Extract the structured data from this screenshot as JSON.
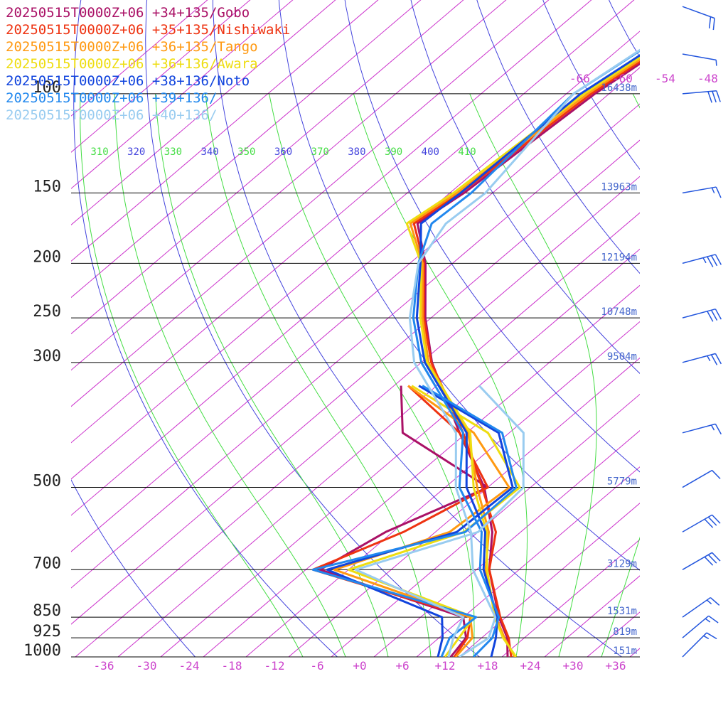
{
  "legend": [
    {
      "text": "20250515T0000Z+06 +34+135/Gobo",
      "color": "#aa1166"
    },
    {
      "text": "20250515T0000Z+06 +35+135/Nishiwaki",
      "color": "#ee3311"
    },
    {
      "text": "20250515T0000Z+06 +36+135/Tango",
      "color": "#ff9911"
    },
    {
      "text": "20250515T0000Z+06 +36+136/Awara",
      "color": "#eedd11"
    },
    {
      "text": "20250515T0000Z+06 +38+136/Noto",
      "color": "#1144dd"
    },
    {
      "text": "20250515T0000Z+06 +39+136/",
      "color": "#2288ee"
    },
    {
      "text": "20250515T0000Z+06 +40+136/",
      "color": "#99ccf0"
    }
  ],
  "colors": {
    "isotherm": "#cc33cc",
    "dry_adiabat": "#4444dd",
    "moist_adiabat": "#44dd44",
    "isobar": "#000000",
    "height_label": "#4466cc",
    "wind_barb": "#2255dd"
  },
  "chart_data": {
    "type": "line",
    "title": "",
    "xlabel": "",
    "ylabel": "",
    "pressure_levels": [
      {
        "p": 100,
        "label": "100",
        "height": "16438m"
      },
      {
        "p": 150,
        "label": "150",
        "height": "13963m"
      },
      {
        "p": 200,
        "label": "200",
        "height": "12194m"
      },
      {
        "p": 250,
        "label": "250",
        "height": "10748m"
      },
      {
        "p": 300,
        "label": "300",
        "height": "9504m"
      },
      {
        "p": 500,
        "label": "500",
        "height": "5779m"
      },
      {
        "p": 700,
        "label": "700",
        "height": "3129m"
      },
      {
        "p": 850,
        "label": "850",
        "height": "1531m"
      },
      {
        "p": 925,
        "label": "925",
        "height": "819m"
      },
      {
        "p": 1000,
        "label": "1000",
        "height": "151m"
      }
    ],
    "temperature_ticks": [
      "-36",
      "-30",
      "-24",
      "-18",
      "-12",
      "-6",
      "+0",
      "+6",
      "+12",
      "+18",
      "+24",
      "+30",
      "+36"
    ],
    "upper_isotherm_labels": [
      "-66",
      "-60",
      "-54",
      "-48"
    ],
    "theta_labels": [
      {
        "label": "310",
        "kind": "moist"
      },
      {
        "label": "320",
        "kind": "dry"
      },
      {
        "label": "330",
        "kind": "moist"
      },
      {
        "label": "340",
        "kind": "dry"
      },
      {
        "label": "350",
        "kind": "moist"
      },
      {
        "label": "360",
        "kind": "dry"
      },
      {
        "label": "370",
        "kind": "moist"
      },
      {
        "label": "380",
        "kind": "dry"
      },
      {
        "label": "390",
        "kind": "moist"
      },
      {
        "label": "400",
        "kind": "dry"
      },
      {
        "label": "410",
        "kind": "moist"
      }
    ],
    "temperature_range": [
      -40,
      40
    ],
    "pressure_range": [
      1000,
      100
    ],
    "series": [
      {
        "name": "20250515T0000Z+06 +34+135/Gobo",
        "temperature": [
          [
            1000,
            20.8
          ],
          [
            925,
            17.6
          ],
          [
            850,
            13.0
          ],
          [
            700,
            3.8
          ],
          [
            600,
            -2.0
          ],
          [
            500,
            -10.5
          ],
          [
            400,
            -23.0
          ],
          [
            300,
            -38.5
          ],
          [
            250,
            -46.8
          ],
          [
            200,
            -55.8
          ],
          [
            170,
            -63.5
          ],
          [
            150,
            -62.0
          ],
          [
            100,
            -60.0
          ],
          [
            70,
            -56.0
          ]
        ],
        "dewpoint": [
          [
            1000,
            12.8
          ],
          [
            925,
            11.8
          ],
          [
            850,
            8.0
          ],
          [
            700,
            -20.0
          ],
          [
            600,
            -17.0
          ],
          [
            500,
            -10.0
          ],
          [
            400,
            -31.0
          ],
          [
            330,
            -39.0
          ]
        ]
      },
      {
        "name": "20250515T0000Z+06 +35+135/Nishiwaki",
        "temperature": [
          [
            1000,
            21.3
          ],
          [
            925,
            17.8
          ],
          [
            850,
            13.2
          ],
          [
            700,
            3.8
          ],
          [
            600,
            -1.5
          ],
          [
            500,
            -10.8
          ],
          [
            400,
            -22.5
          ],
          [
            300,
            -38.6
          ],
          [
            250,
            -47.0
          ],
          [
            200,
            -56.0
          ],
          [
            170,
            -64.0
          ],
          [
            150,
            -62.5
          ],
          [
            100,
            -60.5
          ],
          [
            70,
            -56.3
          ]
        ],
        "dewpoint": [
          [
            1000,
            13.3
          ],
          [
            925,
            12.0
          ],
          [
            850,
            9.0
          ],
          [
            700,
            -21.0
          ],
          [
            600,
            -14.5
          ],
          [
            500,
            -10.0
          ],
          [
            400,
            -23.0
          ],
          [
            330,
            -38.0
          ]
        ]
      },
      {
        "name": "20250515T0000Z+06 +36+135/Tango",
        "temperature": [
          [
            1000,
            21.8
          ],
          [
            925,
            17.2
          ],
          [
            850,
            12.6
          ],
          [
            700,
            3.3
          ],
          [
            600,
            -2.5
          ],
          [
            500,
            -11.5
          ],
          [
            400,
            -21.8
          ],
          [
            300,
            -39.0
          ],
          [
            250,
            -47.2
          ],
          [
            200,
            -56.2
          ],
          [
            170,
            -64.5
          ],
          [
            150,
            -63.0
          ],
          [
            100,
            -61.0
          ],
          [
            70,
            -56.6
          ]
        ],
        "dewpoint": [
          [
            1000,
            13.5
          ],
          [
            925,
            12.7
          ],
          [
            850,
            9.0
          ],
          [
            700,
            -18.0
          ],
          [
            600,
            -8.0
          ],
          [
            500,
            -7.0
          ],
          [
            400,
            -21.0
          ],
          [
            330,
            -38.0
          ]
        ]
      },
      {
        "name": "20250515T0000Z+06 +36+136/Awara",
        "temperature": [
          [
            1000,
            22.0
          ],
          [
            925,
            17.0
          ],
          [
            850,
            12.4
          ],
          [
            700,
            3.5
          ],
          [
            600,
            -2.8
          ],
          [
            500,
            -12.0
          ],
          [
            400,
            -21.5
          ],
          [
            300,
            -39.2
          ],
          [
            250,
            -47.5
          ],
          [
            200,
            -56.4
          ],
          [
            170,
            -65.0
          ],
          [
            150,
            -63.5
          ],
          [
            100,
            -61.5
          ],
          [
            70,
            -57.0
          ]
        ],
        "dewpoint": [
          [
            1000,
            12.0
          ],
          [
            925,
            10.8
          ],
          [
            850,
            9.5
          ],
          [
            700,
            -16.0
          ],
          [
            600,
            -6.0
          ],
          [
            500,
            -5.5
          ],
          [
            400,
            -19.0
          ],
          [
            330,
            -37.5
          ]
        ]
      },
      {
        "name": "20250515T0000Z+06 +38+136/Noto",
        "temperature": [
          [
            1000,
            18.5
          ],
          [
            925,
            16.0
          ],
          [
            850,
            12.8
          ],
          [
            700,
            3.0
          ],
          [
            600,
            -3.0
          ],
          [
            500,
            -13.0
          ],
          [
            400,
            -22.0
          ],
          [
            300,
            -39.5
          ],
          [
            250,
            -48.0
          ],
          [
            200,
            -56.5
          ],
          [
            170,
            -63.0
          ],
          [
            150,
            -62.5
          ],
          [
            100,
            -62.0
          ],
          [
            70,
            -57.5
          ]
        ],
        "dewpoint": [
          [
            1000,
            11.0
          ],
          [
            925,
            8.5
          ],
          [
            850,
            5.0
          ],
          [
            700,
            -19.0
          ],
          [
            600,
            -7.0
          ],
          [
            500,
            -6.5
          ],
          [
            400,
            -17.5
          ],
          [
            330,
            -36.5
          ]
        ]
      },
      {
        "name": "20250515T0000Z+06 +39+136/",
        "temperature": [
          [
            1000,
            16.0
          ],
          [
            925,
            15.5
          ],
          [
            850,
            13.0
          ],
          [
            700,
            2.5
          ],
          [
            600,
            -3.5
          ],
          [
            500,
            -14.0
          ],
          [
            400,
            -22.5
          ],
          [
            300,
            -40.0
          ],
          [
            250,
            -48.5
          ],
          [
            200,
            -56.8
          ],
          [
            170,
            -61.5
          ],
          [
            150,
            -61.0
          ],
          [
            100,
            -63.0
          ],
          [
            70,
            -58.5
          ]
        ],
        "dewpoint": [
          [
            1000,
            11.5
          ],
          [
            925,
            9.5
          ],
          [
            850,
            9.8
          ],
          [
            700,
            -21.0
          ],
          [
            600,
            -5.8
          ],
          [
            500,
            -6.0
          ],
          [
            400,
            -17.0
          ],
          [
            330,
            -36.0
          ]
        ]
      },
      {
        "name": "20250515T0000Z+06 +40+136/",
        "temperature": [
          [
            1000,
            14.0
          ],
          [
            925,
            15.0
          ],
          [
            850,
            12.5
          ],
          [
            700,
            1.5
          ],
          [
            600,
            -5.0
          ],
          [
            500,
            -14.5
          ],
          [
            400,
            -23.5
          ],
          [
            300,
            -41.0
          ],
          [
            250,
            -49.0
          ],
          [
            200,
            -56.8
          ],
          [
            170,
            -59.5
          ],
          [
            150,
            -59.0
          ],
          [
            100,
            -63.0
          ],
          [
            70,
            -58.8
          ]
        ],
        "dewpoint": [
          [
            1000,
            12.5
          ],
          [
            925,
            10.0
          ],
          [
            850,
            8.0
          ],
          [
            700,
            -15.0
          ],
          [
            600,
            -4.0
          ],
          [
            500,
            -5.0
          ],
          [
            400,
            -14.0
          ],
          [
            330,
            -28.0
          ]
        ]
      }
    ],
    "wind_barbs": [
      {
        "p": 70,
        "speed_kt": 20,
        "dir_deg": 290
      },
      {
        "p": 85,
        "speed_kt": 5,
        "dir_deg": 280
      },
      {
        "p": 100,
        "speed_kt": 30,
        "dir_deg": 265
      },
      {
        "p": 150,
        "speed_kt": 15,
        "dir_deg": 260
      },
      {
        "p": 200,
        "speed_kt": 35,
        "dir_deg": 255
      },
      {
        "p": 250,
        "speed_kt": 30,
        "dir_deg": 255
      },
      {
        "p": 300,
        "speed_kt": 25,
        "dir_deg": 255
      },
      {
        "p": 400,
        "speed_kt": 15,
        "dir_deg": 255
      },
      {
        "p": 500,
        "speed_kt": 10,
        "dir_deg": 240
      },
      {
        "p": 600,
        "speed_kt": 30,
        "dir_deg": 240
      },
      {
        "p": 700,
        "speed_kt": 30,
        "dir_deg": 240
      },
      {
        "p": 850,
        "speed_kt": 15,
        "dir_deg": 235
      },
      {
        "p": 925,
        "speed_kt": 15,
        "dir_deg": 230
      },
      {
        "p": 1000,
        "speed_kt": 15,
        "dir_deg": 225
      }
    ]
  }
}
